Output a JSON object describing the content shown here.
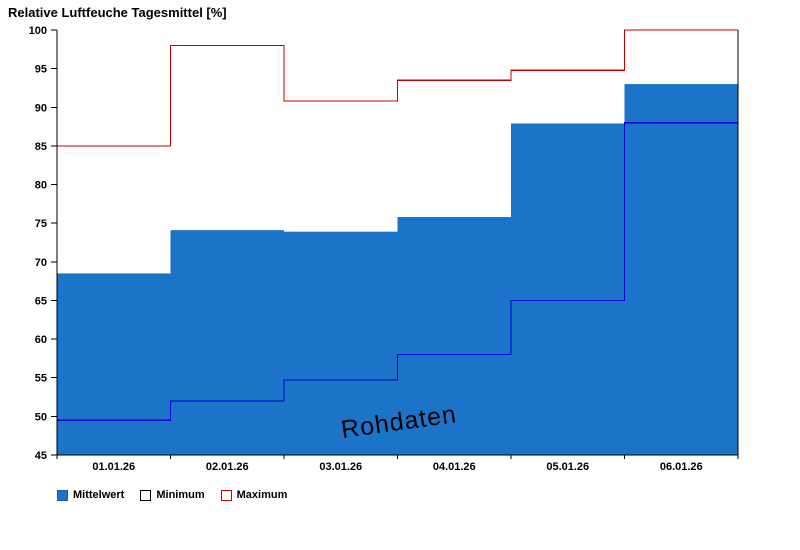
{
  "title": "Relative Luftfeuche Tagesmittel [%]",
  "watermark": "Rohdaten",
  "colors": {
    "bar": "#1b74c8",
    "min_line": "#0000cd",
    "max_line": "#c80000",
    "watermark": "#b3a189",
    "axis": "#000000"
  },
  "legend": [
    {
      "label": "Mittelwert",
      "fill": "#1b74c8",
      "border": "#0f5ca8"
    },
    {
      "label": "Minimum",
      "fill": "#ffffff",
      "border": "#000000"
    },
    {
      "label": "Maximum",
      "fill": "#ffffff",
      "border": "#c80000"
    }
  ],
  "chart_data": {
    "type": "bar",
    "title": "Relative Luftfeuche Tagesmittel [%]",
    "categories": [
      "01.01.26",
      "02.01.26",
      "03.01.26",
      "04.01.26",
      "05.01.26",
      "06.01.26"
    ],
    "series": [
      {
        "name": "Mittelwert",
        "type": "bar",
        "values": [
          68.5,
          74.1,
          73.9,
          75.8,
          87.9,
          93.0
        ]
      },
      {
        "name": "Minimum",
        "type": "step-line",
        "values": [
          49.5,
          52.0,
          54.7,
          58.0,
          65.0,
          88.0
        ]
      },
      {
        "name": "Maximum",
        "type": "step-line",
        "values": [
          85.0,
          98.0,
          90.8,
          93.5,
          94.8,
          100.0
        ]
      }
    ],
    "xlabel": "",
    "ylabel": "",
    "ylim": [
      45,
      100
    ],
    "yticks": [
      45,
      50,
      55,
      60,
      65,
      70,
      75,
      80,
      85,
      90,
      95,
      100
    ],
    "grid": false,
    "legend_position": "bottom-left",
    "annotations": [
      {
        "text": "Rohdaten",
        "rotation_deg": -8
      }
    ]
  }
}
